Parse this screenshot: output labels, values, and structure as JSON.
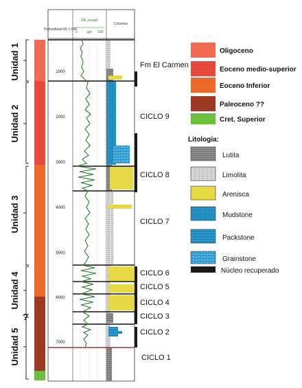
{
  "track_headers": {
    "depth": "Profundidad (ft) 1:000",
    "gr": "GR_forzad",
    "gr_scale_min": "0",
    "gr_scale_mid": "gpi",
    "gr_scale_max": "100",
    "column": "Columna"
  },
  "depth_ticks": [
    "1000",
    "2000",
    "3000",
    "4000",
    "5000",
    "6000",
    "7000"
  ],
  "units": [
    {
      "label": "Unidad 1"
    },
    {
      "label": "Unidad 2"
    },
    {
      "label": "Unidad 3"
    },
    {
      "label": "Unidad 4"
    },
    {
      "label": "Unidad 5"
    }
  ],
  "question_mark": "?",
  "cycles": [
    {
      "label": "Fm El Carmen"
    },
    {
      "label": "CICLO 9"
    },
    {
      "label": "CICLO 8"
    },
    {
      "label": "CICLO 7"
    },
    {
      "label": "CICLO 6"
    },
    {
      "label": "CICLO 5"
    },
    {
      "label": "CICLO 4"
    },
    {
      "label": "CICLO 3"
    },
    {
      "label": "CICLO 2"
    },
    {
      "label": "CICLO 1"
    }
  ],
  "age_legend": [
    {
      "label": "Oligoceno",
      "color": "#ef6b51"
    },
    {
      "label": "Eoceno medio-superior",
      "color": "#e64a3d"
    },
    {
      "label": "Eoceno Inferior",
      "color": "#ee6a2a"
    },
    {
      "label": "Paleoceno ??",
      "color": "#9e3a24"
    },
    {
      "label": "Cret. Superior",
      "color": "#6cbf3c"
    }
  ],
  "lithology_title": "Litología:",
  "lithology_legend": [
    {
      "label": "Lutita",
      "pattern": "lutita-pattern"
    },
    {
      "label": "Limolita",
      "pattern": "limolita-pattern"
    },
    {
      "label": "Arenisca",
      "pattern": "arenisca-pattern"
    },
    {
      "label": "Mudstone",
      "pattern": "mudstone-pattern"
    },
    {
      "label": "Packstone",
      "pattern": "packstone-pattern"
    },
    {
      "label": "Grainstone",
      "pattern": "grainstone-pattern"
    },
    {
      "label": "Núcleo recuperado",
      "pattern": "core-bar"
    }
  ],
  "colors": {
    "gr_curve": "#2a7a2a",
    "mudstone": "#1fa0d8",
    "arenisca": "#f2e24a",
    "lutita": "#8a8a8a",
    "core": "#1a1a1a"
  }
}
